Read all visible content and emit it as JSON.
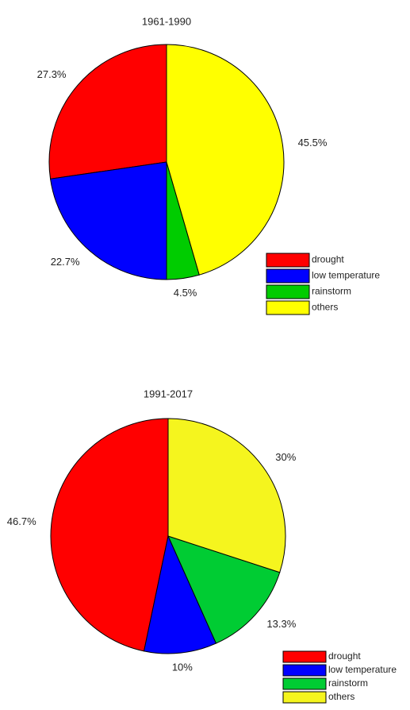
{
  "chart_data": [
    {
      "type": "pie",
      "title": "1961-1990",
      "categories": [
        "drought",
        "low temperature",
        "rainstorm",
        "others"
      ],
      "values": [
        27.3,
        22.7,
        4.5,
        45.5
      ],
      "value_labels": [
        "27.3%",
        "22.7%",
        "4.5%",
        "45.5%"
      ],
      "colors": [
        "#ff0000",
        "#0000ff",
        "#00cc00",
        "#ffff00"
      ]
    },
    {
      "type": "pie",
      "title": "1991-2017",
      "categories": [
        "drought",
        "low temperature",
        "rainstorm",
        "others"
      ],
      "values": [
        46.7,
        10,
        13.3,
        30
      ],
      "value_labels": [
        "46.7%",
        "10%",
        "13.3%",
        "30%"
      ],
      "colors": [
        "#ff0000",
        "#0000ff",
        "#00cc33",
        "#f5f51e"
      ]
    }
  ]
}
